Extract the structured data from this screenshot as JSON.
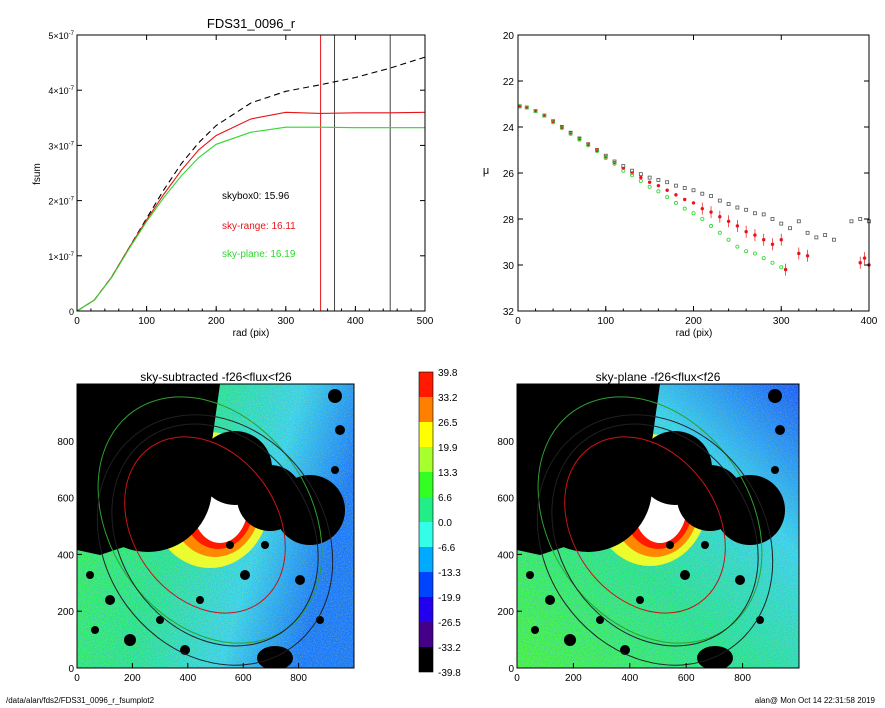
{
  "chart_data": [
    {
      "type": "line",
      "title": "FDS31_0096_r",
      "xlabel": "rad (pix)",
      "ylabel": "fsum",
      "xlim": [
        0,
        500
      ],
      "ylim": [
        0,
        5e-07
      ],
      "x_ticks": [
        "0",
        "100",
        "200",
        "300",
        "400",
        "500"
      ],
      "y_ticks": [
        {
          "mant": "0",
          "exp": ""
        },
        {
          "mant": "1×10",
          "exp": "-7"
        },
        {
          "mant": "2×10",
          "exp": "-7"
        },
        {
          "mant": "3×10",
          "exp": "-7"
        },
        {
          "mant": "4×10",
          "exp": "-7"
        },
        {
          "mant": "5×10",
          "exp": "-7"
        }
      ],
      "vlines": [
        {
          "x": 350,
          "color": "#e8141a"
        },
        {
          "x": 370,
          "color": "#444444"
        },
        {
          "x": 450,
          "color": "#444444"
        }
      ],
      "annotations": [
        {
          "text": "skybox0: 15.96",
          "color": "#000000"
        },
        {
          "text": "sky-range: 16.11",
          "color": "#e8141a"
        },
        {
          "text": "sky-plane: 16.19",
          "color": "#2ed82e"
        }
      ],
      "series": [
        {
          "style": "dashed",
          "color": "#000000",
          "x": [
            0,
            25,
            50,
            75,
            100,
            125,
            150,
            175,
            200,
            250,
            300,
            350,
            400,
            450,
            500
          ],
          "y": [
            0,
            2e-08,
            6.2e-08,
            1.15e-07,
            1.68e-07,
            2.2e-07,
            2.67e-07,
            3.05e-07,
            3.36e-07,
            3.77e-07,
            3.98e-07,
            4.1e-07,
            4.23e-07,
            4.4e-07,
            4.6e-07
          ]
        },
        {
          "style": "solid",
          "color": "#e8141a",
          "x": [
            0,
            25,
            50,
            75,
            100,
            125,
            150,
            175,
            200,
            250,
            300,
            350,
            400,
            450,
            500
          ],
          "y": [
            0,
            2e-08,
            6.2e-08,
            1.15e-07,
            1.65e-07,
            2.12e-07,
            2.55e-07,
            2.92e-07,
            3.18e-07,
            3.48e-07,
            3.6e-07,
            3.58e-07,
            3.59e-07,
            3.59e-07,
            3.6e-07
          ]
        },
        {
          "style": "solid",
          "color": "#2ed82e",
          "x": [
            0,
            25,
            50,
            75,
            100,
            125,
            150,
            175,
            200,
            250,
            300,
            350,
            400,
            450,
            500
          ],
          "y": [
            0,
            2e-08,
            6.1e-08,
            1.13e-07,
            1.62e-07,
            2.06e-07,
            2.45e-07,
            2.78e-07,
            3.02e-07,
            3.24e-07,
            3.33e-07,
            3.33e-07,
            3.32e-07,
            3.32e-07,
            3.32e-07
          ]
        }
      ]
    },
    {
      "type": "scatter",
      "title": "",
      "xlabel": "rad (pix)",
      "ylabel": "μ",
      "xlim": [
        0,
        400
      ],
      "ylim": [
        32,
        20
      ],
      "x_ticks": [
        "0",
        "100",
        "200",
        "300",
        "400"
      ],
      "y_ticks": [
        "20",
        "22",
        "24",
        "26",
        "28",
        "30",
        "32"
      ],
      "series": [
        {
          "color": "#555555",
          "marker": "open-square",
          "x": [
            2,
            10,
            20,
            30,
            40,
            50,
            60,
            70,
            80,
            90,
            100,
            110,
            120,
            130,
            140,
            150,
            160,
            170,
            180,
            190,
            200,
            210,
            220,
            230,
            240,
            250,
            260,
            270,
            280,
            290,
            300,
            310,
            320,
            330,
            340,
            350,
            360,
            380,
            390,
            400
          ],
          "y": [
            23.1,
            23.15,
            23.3,
            23.5,
            23.75,
            24.0,
            24.25,
            24.5,
            24.75,
            25.0,
            25.25,
            25.5,
            25.7,
            25.9,
            26.05,
            26.2,
            26.3,
            26.4,
            26.55,
            26.65,
            26.75,
            26.9,
            27.0,
            27.2,
            27.35,
            27.5,
            27.6,
            27.75,
            27.8,
            28.0,
            28.2,
            28.4,
            28.1,
            28.6,
            28.8,
            28.7,
            28.9,
            28.1,
            28.0,
            28.1
          ]
        },
        {
          "color": "#e8141a",
          "marker": "filled-circle",
          "x": [
            2,
            10,
            20,
            30,
            40,
            50,
            60,
            70,
            80,
            90,
            100,
            110,
            120,
            130,
            140,
            150,
            160,
            170,
            180,
            190,
            200,
            210,
            220,
            230,
            240,
            250,
            260,
            270,
            280,
            290,
            300,
            305,
            320,
            330,
            390,
            395,
            400
          ],
          "y": [
            23.1,
            23.15,
            23.3,
            23.5,
            23.75,
            24.0,
            24.25,
            24.5,
            24.75,
            25.0,
            25.3,
            25.55,
            25.8,
            26.0,
            26.2,
            26.4,
            26.55,
            26.75,
            26.95,
            27.15,
            27.3,
            27.55,
            27.7,
            27.9,
            28.1,
            28.3,
            28.55,
            28.7,
            28.9,
            29.1,
            28.9,
            30.2,
            29.5,
            29.6,
            29.9,
            29.7,
            30.0
          ]
        },
        {
          "color": "#2ed82e",
          "marker": "open-circle",
          "x": [
            2,
            10,
            20,
            30,
            40,
            50,
            60,
            70,
            80,
            90,
            100,
            110,
            120,
            130,
            140,
            150,
            160,
            170,
            180,
            190,
            200,
            210,
            220,
            230,
            240,
            250,
            260,
            270,
            280,
            290,
            300
          ],
          "y": [
            23.1,
            23.15,
            23.3,
            23.5,
            23.8,
            24.05,
            24.3,
            24.55,
            24.8,
            25.05,
            25.35,
            25.6,
            25.9,
            26.1,
            26.35,
            26.6,
            26.8,
            27.05,
            27.3,
            27.55,
            27.75,
            28.0,
            28.3,
            28.6,
            28.9,
            29.2,
            29.4,
            29.5,
            29.7,
            29.9,
            30.1
          ]
        }
      ]
    },
    {
      "type": "heatmap",
      "title": "sky-subtracted -f26<flux<f26",
      "xlim": [
        0,
        1000
      ],
      "ylim": [
        0,
        1000
      ],
      "x_ticks": [
        "0",
        "200",
        "400",
        "600",
        "800"
      ],
      "y_ticks": [
        "0",
        "200",
        "400",
        "600",
        "800"
      ]
    },
    {
      "type": "heatmap",
      "title": "sky-plane -f26<flux<f26",
      "xlim": [
        0,
        1000
      ],
      "ylim": [
        0,
        1000
      ],
      "x_ticks": [
        "0",
        "200",
        "400",
        "600",
        "800"
      ],
      "y_ticks": [
        "0",
        "200",
        "400",
        "600",
        "800"
      ]
    }
  ],
  "colorbar": {
    "labels": [
      "39.8",
      "33.2",
      "26.5",
      "19.9",
      "13.3",
      "6.6",
      "0.0",
      "-6.6",
      "-13.3",
      "-19.9",
      "-26.5",
      "-33.2",
      "-39.8"
    ],
    "colors": [
      "#ff1a00",
      "#ff8000",
      "#ffff00",
      "#a8ff2e",
      "#33ff22",
      "#22ee88",
      "#33ffe8",
      "#00aaff",
      "#0044ff",
      "#2200ee",
      "#440088",
      "#000000"
    ]
  },
  "footer": {
    "path": "/data/alan/fds2/FDS31_0096_r_fsumplot2",
    "user": "alan@  Mon Oct 14 22:31:58 2019"
  }
}
